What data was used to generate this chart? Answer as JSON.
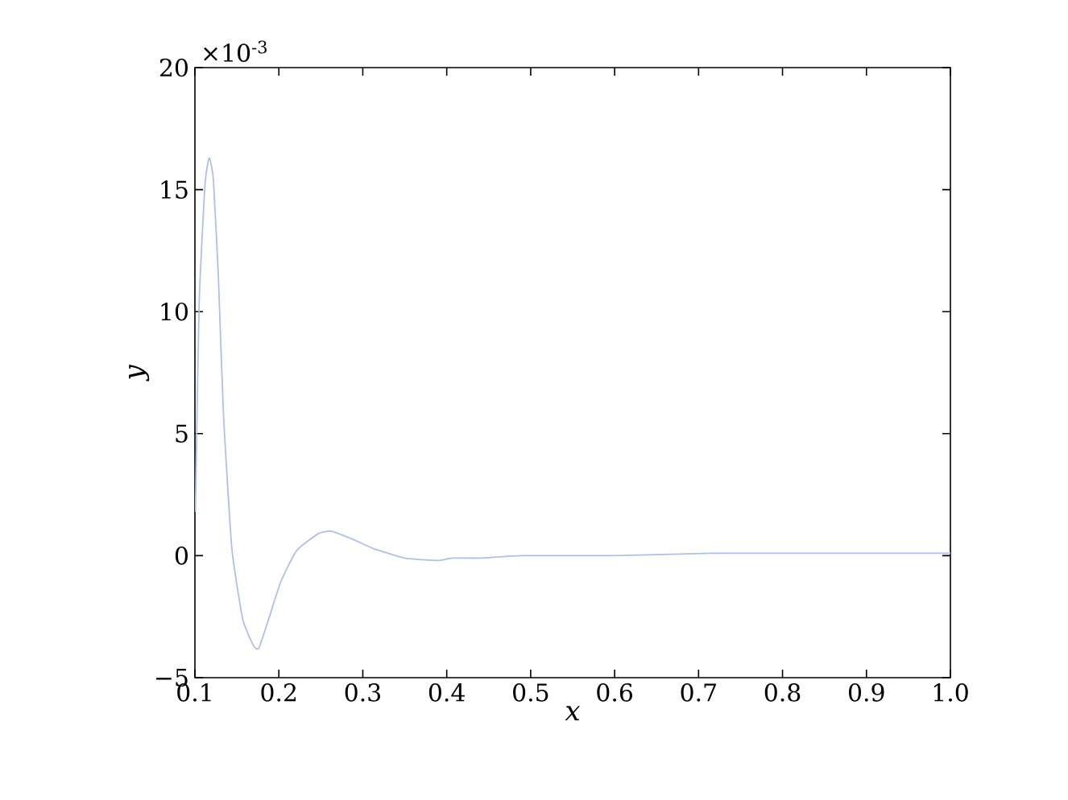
{
  "chart_data": {
    "type": "line",
    "xlabel": "x",
    "ylabel": "y",
    "annotations": [
      "×10$^{-3}$"
    ],
    "x": [
      0.1006,
      0.105,
      0.112,
      0.117,
      0.122,
      0.128,
      0.134,
      0.144,
      0.157,
      0.17,
      0.176,
      0.186,
      0.202,
      0.221,
      0.247,
      0.263,
      0.286,
      0.312,
      0.35,
      0.389,
      0.407,
      0.441,
      0.49,
      0.6,
      0.716,
      0.85,
      1.0
    ],
    "series": [
      {
        "color": "#aec0ea",
        "values": [
          1.8,
          10.3,
          15.2,
          16.3,
          15.4,
          11.4,
          5.8,
          0.3,
          -2.6,
          -3.7,
          -3.8,
          -2.8,
          -1.1,
          0.2,
          0.9,
          1.0,
          0.7,
          0.3,
          -0.1,
          -0.2,
          -0.1,
          -0.1,
          0.0,
          0.0,
          0.1,
          0.1,
          0.1
        ]
      }
    ],
    "xlim": [
      0.1,
      1.0
    ],
    "ylim": [
      -5,
      20
    ],
    "xticks": [
      0.1,
      0.2,
      0.3,
      0.4,
      0.5,
      0.6,
      0.7,
      0.8,
      0.9,
      {
        "value": 1.0,
        "label": "1.0"
      }
    ],
    "yticks": [
      {
        "value": -5,
        "label": "−5"
      },
      0,
      5,
      10,
      15,
      20
    ],
    "grid": false,
    "marker": "none",
    "line_style": "solid"
  }
}
